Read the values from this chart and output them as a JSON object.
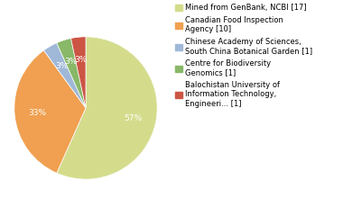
{
  "legend_labels": [
    "Mined from GenBank, NCBI [17]",
    "Canadian Food Inspection\nAgency [10]",
    "Chinese Academy of Sciences,\nSouth China Botanical Garden [1]",
    "Centre for Biodiversity\nGenomics [1]",
    "Balochistan University of\nInformation Technology,\nEngineeri... [1]"
  ],
  "values": [
    17,
    10,
    1,
    1,
    1
  ],
  "colors": [
    "#d4dc8c",
    "#f0a050",
    "#a0b8d8",
    "#88b868",
    "#cc5544"
  ],
  "background_color": "#ffffff",
  "text_color": "#ffffff",
  "pct_fontsize": 6.5,
  "legend_fontsize": 6.0
}
